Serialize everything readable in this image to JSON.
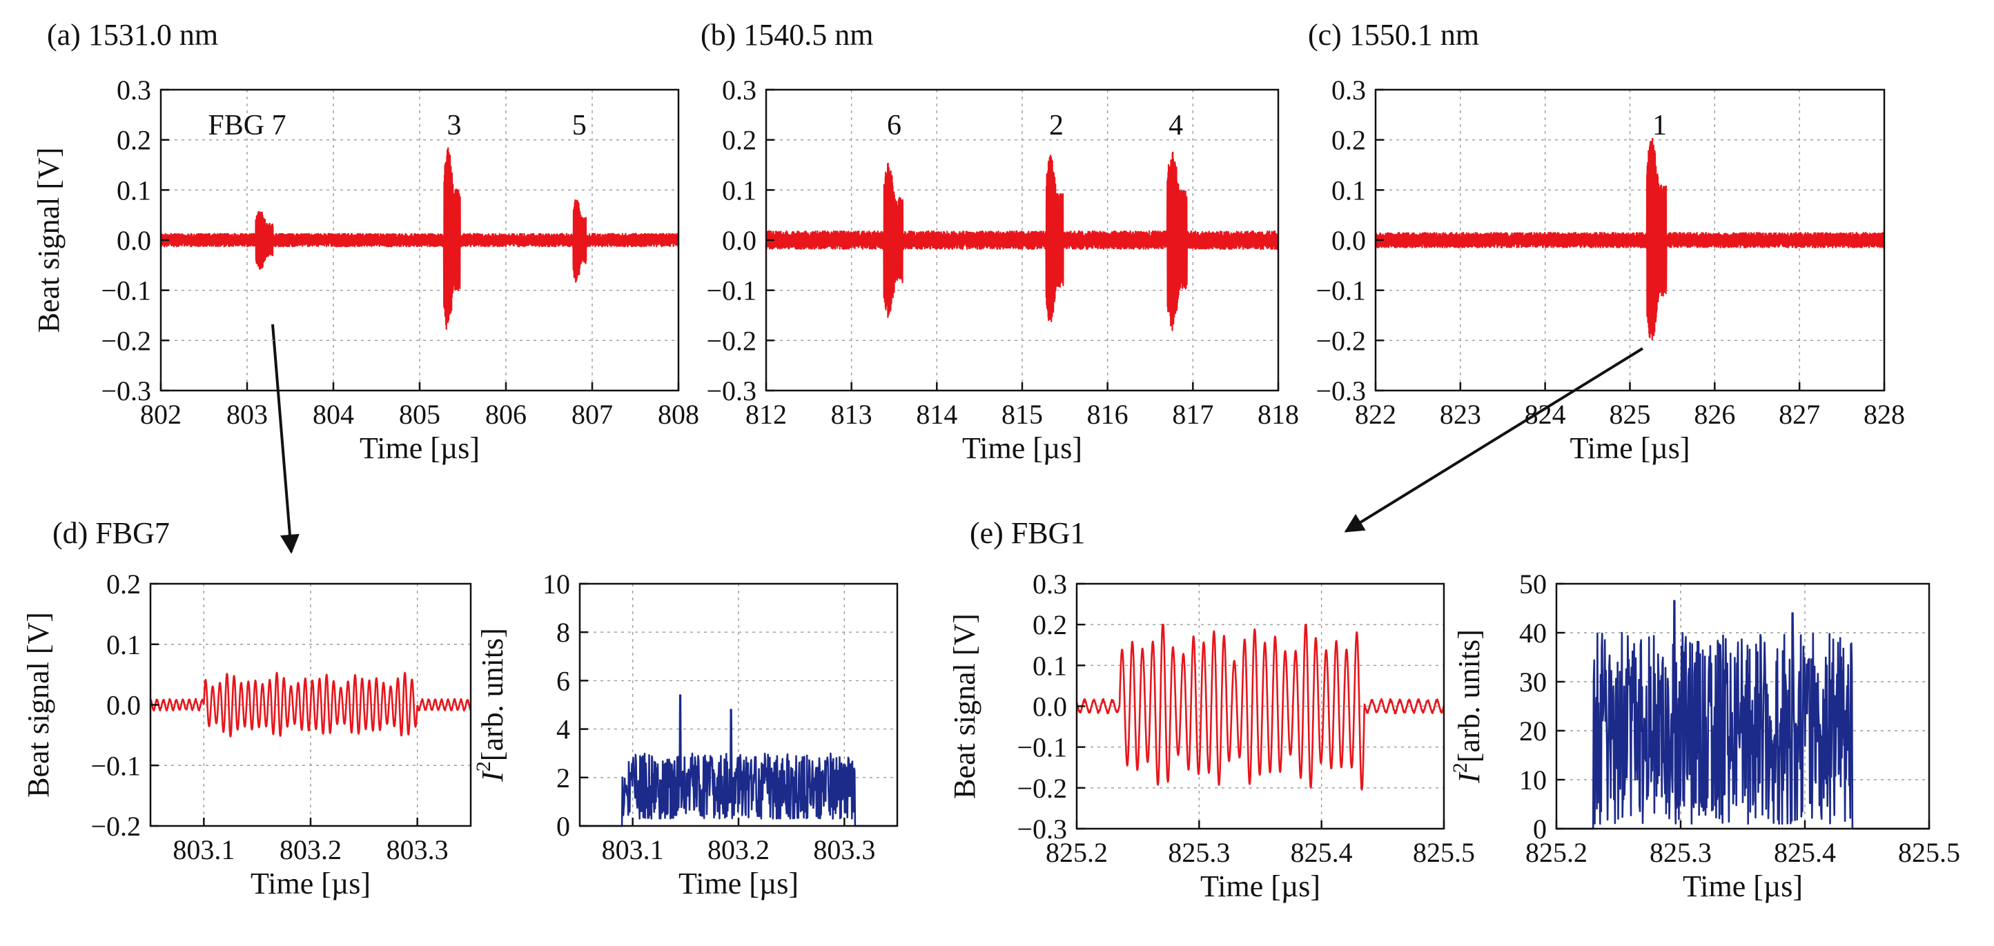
{
  "figure": {
    "panels": [
      {
        "id": "a",
        "title": "(a) 1531.0 nm"
      },
      {
        "id": "b",
        "title": "(b) 1540.5 nm"
      },
      {
        "id": "c",
        "title": "(c) 1550.1 nm"
      },
      {
        "id": "d",
        "title": "(d) FBG7"
      },
      {
        "id": "e",
        "title": "(e) FBG1"
      }
    ]
  },
  "chart_data": [
    {
      "id": "a",
      "type": "line",
      "title": "(a) 1531.0 nm",
      "xlabel": "Time [µs]",
      "ylabel": "Beat signal [V]",
      "xlim": [
        802,
        808
      ],
      "ylim": [
        -0.3,
        0.3
      ],
      "xticks": [
        802,
        803,
        804,
        805,
        806,
        807,
        808
      ],
      "yticks": [
        0.3,
        0.2,
        0.1,
        0.0,
        -0.1,
        -0.2,
        -0.3
      ],
      "ytick_labels": [
        "0.3",
        "0.2",
        "0.1",
        "0.0",
        "−0.1",
        "−0.2",
        "−0.3"
      ],
      "color": "#e8151b",
      "noise_amplitude": 0.013,
      "series": [
        {
          "name": "beat signal",
          "bursts": [
            {
              "start": 803.1,
              "end": 803.3,
              "amplitude": 0.06
            },
            {
              "start": 805.28,
              "end": 805.47,
              "amplitude": 0.185
            },
            {
              "start": 806.78,
              "end": 806.93,
              "amplitude": 0.085
            }
          ]
        }
      ],
      "annotations": [
        {
          "text": "FBG 7",
          "x": 803.0,
          "y": 0.23
        },
        {
          "text": "3",
          "x": 805.4,
          "y": 0.23
        },
        {
          "text": "5",
          "x": 806.85,
          "y": 0.23
        }
      ]
    },
    {
      "id": "b",
      "type": "line",
      "title": "(b) 1540.5 nm",
      "xlabel": "Time [µs]",
      "ylabel": "",
      "xlim": [
        812,
        818
      ],
      "ylim": [
        -0.3,
        0.3
      ],
      "xticks": [
        812,
        813,
        814,
        815,
        816,
        817,
        818
      ],
      "yticks": [
        0.3,
        0.2,
        0.1,
        0.0,
        -0.1,
        -0.2,
        -0.3
      ],
      "ytick_labels": [
        "0.3",
        "0.2",
        "0.1",
        "0.0",
        "−0.1",
        "−0.2",
        "−0.3"
      ],
      "color": "#e8151b",
      "noise_amplitude": 0.018,
      "series": [
        {
          "name": "beat signal",
          "bursts": [
            {
              "start": 813.38,
              "end": 813.6,
              "amplitude": 0.155
            },
            {
              "start": 815.28,
              "end": 815.48,
              "amplitude": 0.17
            },
            {
              "start": 816.7,
              "end": 816.93,
              "amplitude": 0.18
            }
          ]
        }
      ],
      "annotations": [
        {
          "text": "6",
          "x": 813.5,
          "y": 0.23
        },
        {
          "text": "2",
          "x": 815.4,
          "y": 0.23
        },
        {
          "text": "4",
          "x": 816.8,
          "y": 0.23
        }
      ]
    },
    {
      "id": "c",
      "type": "line",
      "title": "(c) 1550.1 nm",
      "xlabel": "Time [µs]",
      "ylabel": "",
      "xlim": [
        822,
        828
      ],
      "ylim": [
        -0.3,
        0.3
      ],
      "xticks": [
        822,
        823,
        824,
        825,
        826,
        827,
        828
      ],
      "yticks": [
        0.3,
        0.2,
        0.1,
        0.0,
        -0.1,
        -0.2,
        -0.3
      ],
      "ytick_labels": [
        "0.3",
        "0.2",
        "0.1",
        "0.0",
        "−0.1",
        "−0.2",
        "−0.3"
      ],
      "color": "#e8151b",
      "noise_amplitude": 0.015,
      "series": [
        {
          "name": "beat signal",
          "bursts": [
            {
              "start": 825.2,
              "end": 825.43,
              "amplitude": 0.205
            }
          ]
        }
      ],
      "annotations": [
        {
          "text": "1",
          "x": 825.35,
          "y": 0.23
        }
      ]
    },
    {
      "id": "d-left",
      "type": "line",
      "title": "(d) FBG7",
      "xlabel": "Time [µs]",
      "ylabel": "Beat signal [V]",
      "xlim": [
        803.05,
        803.35
      ],
      "ylim": [
        -0.2,
        0.2
      ],
      "xticks": [
        803.1,
        803.2,
        803.3
      ],
      "yticks": [
        0.2,
        0.1,
        0.0,
        -0.1,
        -0.2
      ],
      "ytick_labels": [
        "0.2",
        "0.1",
        "0.0",
        "−0.1",
        "−0.2"
      ],
      "color": "#e8151b",
      "series": [
        {
          "name": "beat signal",
          "oscillation": {
            "start": 803.1,
            "end": 803.3,
            "amplitude": 0.05,
            "cycles": 30,
            "outside_amplitude": 0.01,
            "peak_max": 0.072,
            "peak_min": -0.058
          }
        }
      ]
    },
    {
      "id": "d-right",
      "type": "line",
      "title": "",
      "xlabel": "Time [µs]",
      "ylabel": "I²[arb. units]",
      "ylabel_parts": {
        "symbol": "I",
        "sup": "2",
        "rest": "[arb. units]"
      },
      "xlim": [
        803.05,
        803.35
      ],
      "ylim": [
        0,
        10
      ],
      "xticks": [
        803.1,
        803.2,
        803.3
      ],
      "yticks": [
        10,
        8,
        6,
        4,
        2,
        0
      ],
      "ytick_labels": [
        "10",
        "8",
        "6",
        "4",
        "2",
        "0"
      ],
      "color": "#1c2a8a",
      "series": [
        {
          "name": "intensity squared",
          "band": {
            "start": 803.09,
            "end": 803.31,
            "typical_min": 0.3,
            "typical_max": 3.0,
            "peaks": [
              {
                "x": 803.145,
                "y": 5.4
              },
              {
                "x": 803.193,
                "y": 4.8
              }
            ]
          }
        }
      ]
    },
    {
      "id": "e-left",
      "type": "line",
      "title": "(e) FBG1",
      "xlabel": "Time [µs]",
      "ylabel": "Beat signal [V]",
      "xlim": [
        825.2,
        825.5
      ],
      "ylim": [
        -0.3,
        0.3
      ],
      "xticks": [
        825.2,
        825.3,
        825.4,
        825.5
      ],
      "yticks": [
        0.3,
        0.2,
        0.1,
        0.0,
        -0.1,
        -0.2,
        -0.3
      ],
      "ytick_labels": [
        "0.3",
        "0.2",
        "0.1",
        "0.0",
        "−0.1",
        "−0.2",
        "−0.3"
      ],
      "color": "#e8151b",
      "series": [
        {
          "name": "beat signal",
          "oscillation": {
            "start": 825.235,
            "end": 825.435,
            "amplitude": 0.195,
            "cycles": 24,
            "outside_amplitude": 0.018,
            "peak_max": 0.2,
            "peak_min": -0.21
          }
        }
      ]
    },
    {
      "id": "e-right",
      "type": "line",
      "title": "",
      "xlabel": "Time [µs]",
      "ylabel": "I²[arb. units]",
      "ylabel_parts": {
        "symbol": "I",
        "sup": "2",
        "rest": "[arb. units]"
      },
      "xlim": [
        825.2,
        825.5
      ],
      "ylim": [
        0,
        50
      ],
      "xticks": [
        825.2,
        825.3,
        825.4,
        825.5
      ],
      "yticks": [
        50,
        40,
        30,
        20,
        10,
        0
      ],
      "ytick_labels": [
        "50",
        "40",
        "30",
        "20",
        "10",
        "0"
      ],
      "color": "#1c2a8a",
      "series": [
        {
          "name": "intensity squared",
          "band": {
            "start": 825.23,
            "end": 825.438,
            "typical_min": 1,
            "typical_max": 40,
            "peaks": [
              {
                "x": 825.295,
                "y": 46.5
              },
              {
                "x": 825.39,
                "y": 44
              }
            ]
          }
        }
      ]
    }
  ]
}
